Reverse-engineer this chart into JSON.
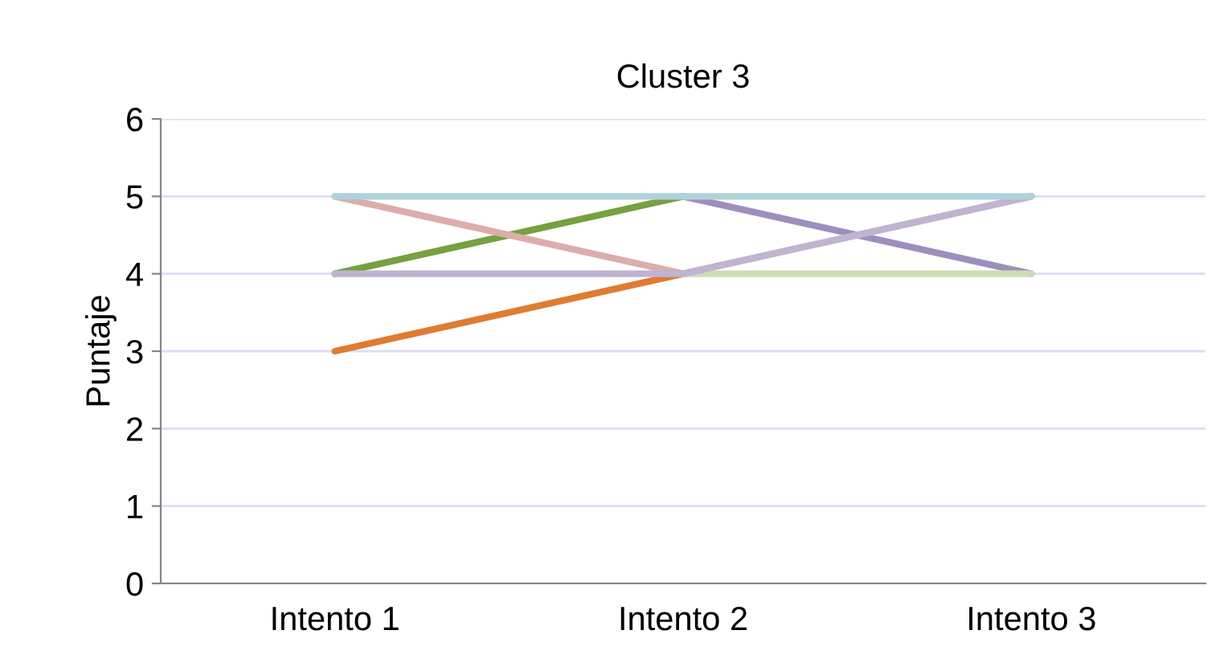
{
  "chart_data": {
    "type": "line",
    "title": "Cluster 3",
    "ylabel": "Puntaje",
    "categories": [
      "Intento 1",
      "Intento 2",
      "Intento 3"
    ],
    "series": [
      {
        "color": "#e07b32",
        "values": [
          3,
          4,
          null
        ]
      },
      {
        "color": "#77a040",
        "values": [
          4,
          5,
          null
        ]
      },
      {
        "color": "#9d8fbd",
        "values": [
          null,
          5,
          4
        ]
      },
      {
        "color": "#cddcb5",
        "values": [
          null,
          4,
          4
        ]
      },
      {
        "color": "#dbaeab",
        "values": [
          5,
          4,
          5
        ]
      },
      {
        "color": "#bfb4d2",
        "values": [
          4,
          4,
          5
        ]
      },
      {
        "color": "#b0d2db",
        "values": [
          5,
          5,
          5
        ]
      }
    ],
    "ylim": [
      0,
      6
    ],
    "yticks": [
      0,
      1,
      2,
      3,
      4,
      5,
      6
    ],
    "grid": "y",
    "legend": false,
    "marker": "none",
    "line_style": "solid"
  }
}
